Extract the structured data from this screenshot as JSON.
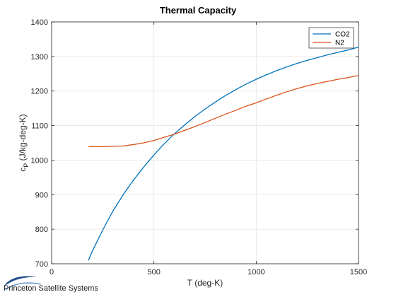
{
  "chart_data": {
    "type": "line",
    "title": "Thermal Capacity",
    "xlabel": "T (deg-K)",
    "ylabel": "c_P (J/kg-deg-K)",
    "xlim": [
      0,
      1500
    ],
    "ylim": [
      700,
      1400
    ],
    "xticks": [
      0,
      500,
      1000,
      1500
    ],
    "yticks": [
      700,
      800,
      900,
      1000,
      1100,
      1200,
      1300,
      1400
    ],
    "grid": true,
    "legend_position": "top-right",
    "series": [
      {
        "name": "CO2",
        "color": "#0072BD",
        "x": [
          180,
          200,
          250,
          300,
          350,
          400,
          450,
          500,
          550,
          600,
          650,
          700,
          750,
          800,
          850,
          900,
          950,
          1000,
          1050,
          1100,
          1150,
          1200,
          1250,
          1300,
          1350,
          1400,
          1450,
          1500
        ],
        "y": [
          710,
          738,
          798,
          853,
          900,
          942,
          980,
          1015,
          1047,
          1076,
          1102,
          1126,
          1148,
          1168,
          1187,
          1204,
          1220,
          1234,
          1247,
          1259,
          1270,
          1280,
          1289,
          1297,
          1305,
          1312,
          1319,
          1327
        ]
      },
      {
        "name": "N2",
        "color": "#D95319",
        "x": [
          180,
          250,
          300,
          350,
          400,
          450,
          500,
          550,
          600,
          650,
          700,
          750,
          800,
          850,
          900,
          950,
          1000,
          1050,
          1100,
          1150,
          1200,
          1250,
          1300,
          1350,
          1400,
          1450,
          1500
        ],
        "y": [
          1039,
          1039,
          1040,
          1041,
          1045,
          1050,
          1057,
          1066,
          1075,
          1086,
          1097,
          1109,
          1121,
          1133,
          1144,
          1156,
          1166,
          1177,
          1188,
          1198,
          1207,
          1215,
          1222,
          1228,
          1234,
          1239,
          1245
        ]
      }
    ]
  },
  "logo": {
    "text": "Princeton Satellite Systems"
  }
}
